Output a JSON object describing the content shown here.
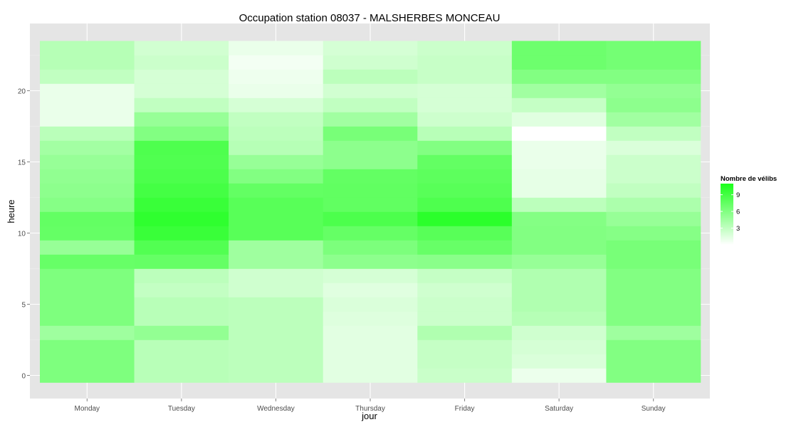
{
  "chart_data": {
    "type": "heatmap",
    "title": "Occupation station 08037 - MALSHERBES MONCEAU",
    "xlabel": "jour",
    "ylabel": "heure",
    "x_categories": [
      "Monday",
      "Tuesday",
      "Wednesday",
      "Thursday",
      "Friday",
      "Saturday",
      "Sunday"
    ],
    "y_range": [
      0,
      23
    ],
    "y_ticks": [
      0,
      5,
      10,
      15,
      20
    ],
    "grid": true,
    "legend": {
      "title": "Nombre de vélibs",
      "position": "right",
      "ticks": [
        3,
        6,
        9
      ],
      "color_low": "#ffffff",
      "color_high": "#1aff1a",
      "value_range": [
        0,
        11
      ]
    },
    "values": [
      [
        6.2,
        3.4,
        3.2,
        1.4,
        2.6,
        0.9,
        6.0
      ],
      [
        6.2,
        3.4,
        3.2,
        1.4,
        2.8,
        1.8,
        6.0
      ],
      [
        6.2,
        3.4,
        3.2,
        1.4,
        2.8,
        2.0,
        6.0
      ],
      [
        4.6,
        5.2,
        3.2,
        1.4,
        3.8,
        2.3,
        4.6
      ],
      [
        6.2,
        3.4,
        3.2,
        1.6,
        2.5,
        3.5,
        6.0
      ],
      [
        6.2,
        3.4,
        3.2,
        1.8,
        2.5,
        3.8,
        6.0
      ],
      [
        6.2,
        2.9,
        2.3,
        1.5,
        2.3,
        3.8,
        6.0
      ],
      [
        6.2,
        3.2,
        2.3,
        2.0,
        2.8,
        3.8,
        6.0
      ],
      [
        7.3,
        7.4,
        4.6,
        5.5,
        5.6,
        5.0,
        6.5
      ],
      [
        5.0,
        8.3,
        4.6,
        6.3,
        7.3,
        6.0,
        6.5
      ],
      [
        7.4,
        9.5,
        8.0,
        7.4,
        8.0,
        6.0,
        5.8
      ],
      [
        7.5,
        10.0,
        8.0,
        8.6,
        10.2,
        5.9,
        5.0
      ],
      [
        5.8,
        9.5,
        8.0,
        7.6,
        8.5,
        3.2,
        4.0
      ],
      [
        5.5,
        9.0,
        7.5,
        7.6,
        8.0,
        1.2,
        3.0
      ],
      [
        5.3,
        8.6,
        6.0,
        7.5,
        7.8,
        1.2,
        2.5
      ],
      [
        5.0,
        8.4,
        5.0,
        5.5,
        7.5,
        1.0,
        2.5
      ],
      [
        4.4,
        8.5,
        3.5,
        5.5,
        6.0,
        1.0,
        1.8
      ],
      [
        3.3,
        6.0,
        3.2,
        6.5,
        3.4,
        0.0,
        3.0
      ],
      [
        1.0,
        5.0,
        3.0,
        4.5,
        2.4,
        1.5,
        4.5
      ],
      [
        1.0,
        3.0,
        2.0,
        3.0,
        2.0,
        2.8,
        5.5
      ],
      [
        1.0,
        2.0,
        1.0,
        2.2,
        2.0,
        4.5,
        5.2
      ],
      [
        3.0,
        2.0,
        0.8,
        3.2,
        2.7,
        6.0,
        6.0
      ],
      [
        3.5,
        2.5,
        0.6,
        2.3,
        2.7,
        7.0,
        6.7
      ],
      [
        3.5,
        2.2,
        1.0,
        2.0,
        2.5,
        7.0,
        6.7
      ]
    ]
  }
}
